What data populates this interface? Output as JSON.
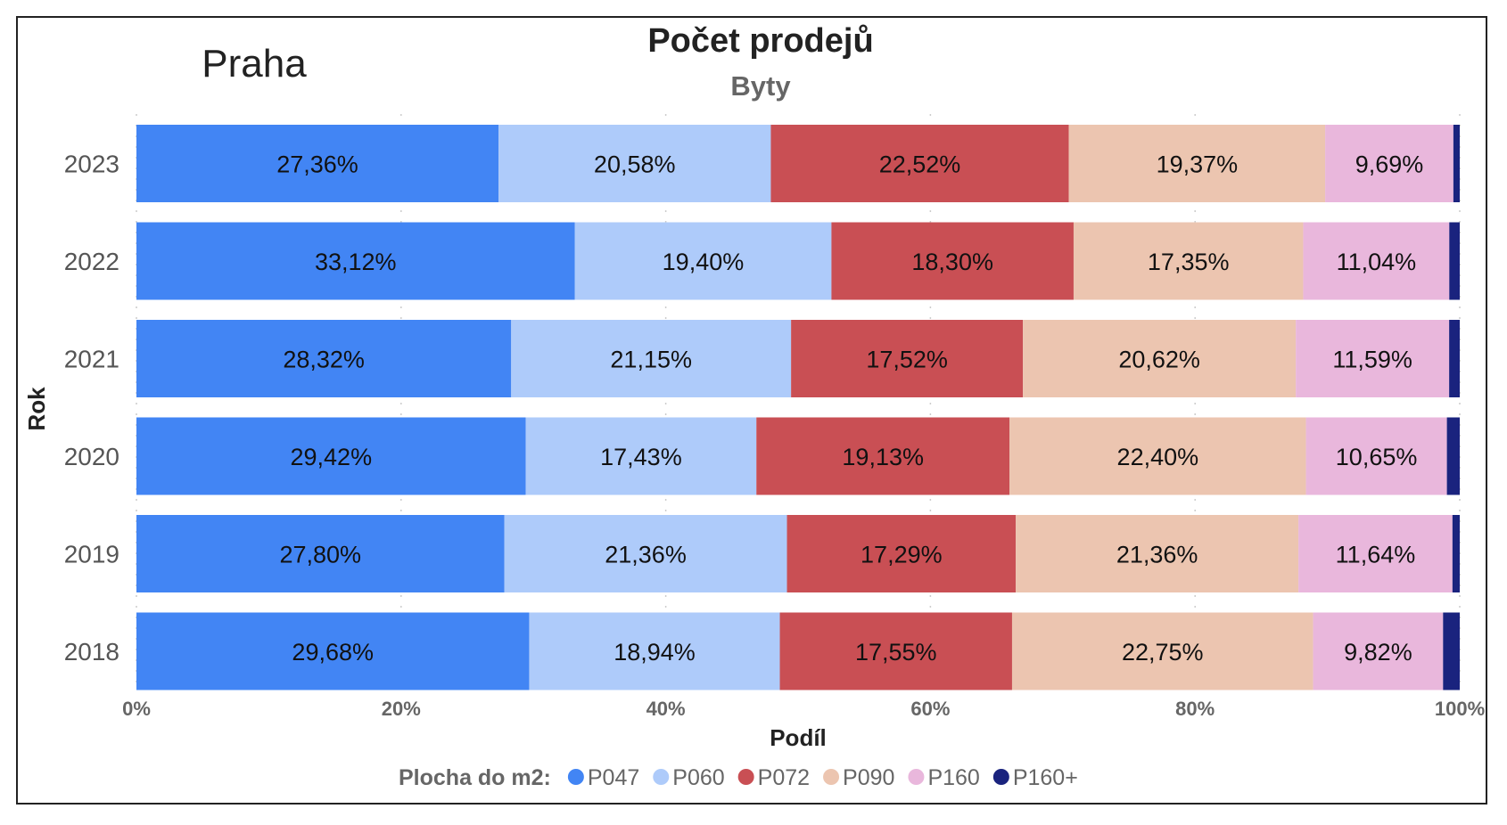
{
  "region_label": "Praha",
  "chart_data": {
    "type": "bar",
    "orientation": "horizontal",
    "stacked": "percent",
    "title": "Počet prodejů",
    "subtitle": "Byty",
    "xlabel": "Podíl",
    "ylabel": "Rok",
    "xlim": [
      0,
      100
    ],
    "x_ticks": [
      "0%",
      "20%",
      "40%",
      "60%",
      "80%",
      "100%"
    ],
    "categories": [
      "2023",
      "2022",
      "2021",
      "2020",
      "2019",
      "2018"
    ],
    "legend_title": "Plocha do m2:",
    "legend_position": "bottom",
    "grid": "vertical dotted",
    "series": [
      {
        "name": "P047",
        "color": "#4285f4",
        "values": [
          27.36,
          33.12,
          28.32,
          29.42,
          27.8,
          29.68
        ],
        "labels": [
          "27,36%",
          "33,12%",
          "28,32%",
          "29,42%",
          "27,80%",
          "29,68%"
        ]
      },
      {
        "name": "P060",
        "color": "#aecbfa",
        "values": [
          20.58,
          19.4,
          21.15,
          17.43,
          21.36,
          18.94
        ],
        "labels": [
          "20,58%",
          "19,40%",
          "21,15%",
          "17,43%",
          "21,36%",
          "18,94%"
        ]
      },
      {
        "name": "P072",
        "color": "#c94f54",
        "values": [
          22.52,
          18.3,
          17.52,
          19.13,
          17.29,
          17.55
        ],
        "labels": [
          "22,52%",
          "18,30%",
          "17,52%",
          "19,13%",
          "17,29%",
          "17,55%"
        ]
      },
      {
        "name": "P090",
        "color": "#ecc5b0",
        "values": [
          19.37,
          17.35,
          20.62,
          22.4,
          21.36,
          22.75
        ],
        "labels": [
          "19,37%",
          "17,35%",
          "20,62%",
          "22,40%",
          "21,36%",
          "22,75%"
        ]
      },
      {
        "name": "P160",
        "color": "#e9b7dc",
        "values": [
          9.69,
          11.04,
          11.59,
          10.65,
          11.64,
          9.82
        ],
        "labels": [
          "9,69%",
          "11,04%",
          "11,59%",
          "10,65%",
          "11,64%",
          "9,82%"
        ]
      },
      {
        "name": "P160+",
        "color": "#1a237e",
        "values": [
          0.48,
          0.79,
          0.8,
          0.97,
          0.55,
          1.26
        ],
        "labels": [
          "",
          "",
          "",
          "",
          "",
          ""
        ]
      }
    ]
  }
}
